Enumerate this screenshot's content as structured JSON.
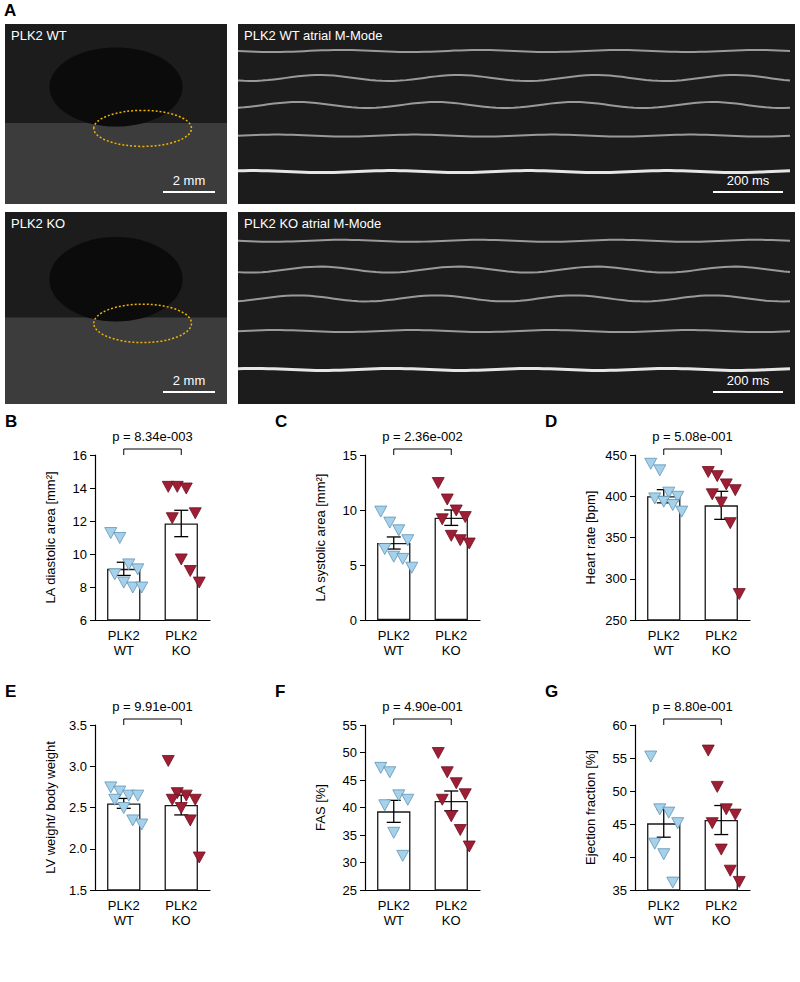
{
  "panel_a": {
    "panel": "A",
    "images": [
      {
        "label": "PLK2 WT",
        "scale_bar": "2 mm"
      },
      {
        "label": "PLK2 WT atrial M-Mode",
        "scale_bar": "200 ms"
      },
      {
        "label": "PLK2 KO",
        "scale_bar": "2 mm"
      },
      {
        "label": "PLK2 KO atrial M-Mode",
        "scale_bar": "200 ms"
      }
    ]
  },
  "chart_data": [
    {
      "panel": "B",
      "type": "bar",
      "ylabel": "LA diastolic area [mm²]",
      "categories": [
        "PLK2\nWT",
        "PLK2\nKO"
      ],
      "values": [
        9.1,
        11.85
      ],
      "errors": [
        0.4,
        0.8
      ],
      "points": [
        [
          11.3,
          11.0,
          9.4,
          9.1,
          8.8,
          8.3,
          8.0,
          8.0
        ],
        [
          14.1,
          14.1,
          14.0,
          12.5,
          12.2,
          9.7,
          9.0,
          8.3
        ]
      ],
      "colors": [
        "#a6d1ea",
        "#9e1f35"
      ],
      "marker": "triangle-down",
      "annotation": "p = 8.34e-003",
      "ylim": [
        6,
        16
      ],
      "yticks": [
        6,
        8,
        10,
        12,
        14,
        16
      ]
    },
    {
      "panel": "C",
      "type": "bar",
      "ylabel": "LA systolic area [mm²]",
      "categories": [
        "PLK2\nWT",
        "PLK2\nKO"
      ],
      "values": [
        7.0,
        9.3
      ],
      "errors": [
        0.55,
        0.7
      ],
      "points": [
        [
          9.9,
          8.9,
          8.2,
          7.3,
          6.5,
          5.8,
          5.6,
          4.8
        ],
        [
          12.5,
          11.0,
          10.0,
          9.4,
          9.2,
          7.7,
          7.3,
          7.0
        ]
      ],
      "colors": [
        "#a6d1ea",
        "#9e1f35"
      ],
      "marker": "triangle-down",
      "annotation": "p = 2.36e-002",
      "ylim": [
        0,
        15
      ],
      "yticks": [
        0,
        5,
        10,
        15
      ]
    },
    {
      "panel": "D",
      "type": "bar",
      "ylabel": "Heart rate [bpm]",
      "categories": [
        "PLK2\nWT",
        "PLK2\nKO"
      ],
      "values": [
        400,
        389
      ],
      "errors": [
        8,
        17
      ],
      "points": [
        [
          440,
          432,
          405,
          400,
          398,
          394,
          390,
          382
        ],
        [
          430,
          425,
          415,
          408,
          403,
          393,
          368,
          282
        ]
      ],
      "colors": [
        "#a6d1ea",
        "#9e1f35"
      ],
      "marker": "triangle-down",
      "annotation": "p = 5.08e-001",
      "ylim": [
        250,
        450
      ],
      "yticks": [
        250,
        300,
        350,
        400,
        450
      ]
    },
    {
      "panel": "E",
      "type": "bar",
      "ylabel": "LV weight/ body weight",
      "categories": [
        "PLK2\nWT",
        "PLK2\nKO"
      ],
      "values": [
        2.55,
        2.53
      ],
      "errors": [
        0.06,
        0.12
      ],
      "points": [
        [
          2.75,
          2.7,
          2.65,
          2.65,
          2.6,
          2.5,
          2.35,
          2.3
        ],
        [
          3.07,
          2.68,
          2.65,
          2.6,
          2.6,
          2.5,
          2.35,
          1.9
        ]
      ],
      "colors": [
        "#a6d1ea",
        "#9e1f35"
      ],
      "marker": "triangle-down",
      "annotation": "p = 9.91e-001",
      "ylim": [
        1.5,
        3.5
      ],
      "yticks": [
        1.5,
        {
          "value": 2,
          "label": "2.0"
        },
        2.5,
        {
          "value": 3,
          "label": "3.0"
        },
        3.5
      ]
    },
    {
      "panel": "F",
      "type": "bar",
      "ylabel": "FAS [%]",
      "categories": [
        "PLK2\nWT",
        "PLK2\nKO"
      ],
      "values": [
        39.3,
        41.2
      ],
      "errors": [
        2.0,
        1.8
      ],
      "points": [
        [
          47.3,
          46.5,
          42.3,
          41.5,
          40.5,
          35.5,
          31.3
        ],
        [
          50.0,
          46.5,
          44.5,
          42.5,
          41.5,
          38.5,
          36.0,
          33.0
        ]
      ],
      "colors": [
        "#a6d1ea",
        "#9e1f35"
      ],
      "marker": "triangle-down",
      "annotation": "p = 4.90e-001",
      "ylim": [
        25,
        55
      ],
      "yticks": [
        25,
        30,
        35,
        40,
        45,
        50,
        55
      ]
    },
    {
      "panel": "G",
      "type": "bar",
      "ylabel": "Ejection fraction [%]",
      "categories": [
        "PLK2\nWT",
        "PLK2\nKO"
      ],
      "values": [
        45.1,
        45.6
      ],
      "errors": [
        2.1,
        2.2
      ],
      "points": [
        [
          55.3,
          47.3,
          46.8,
          45.2,
          42.1,
          40.5,
          36.2
        ],
        [
          56.2,
          50.7,
          47.3,
          46.5,
          45.2,
          41.2,
          38.0,
          36.3
        ]
      ],
      "colors": [
        "#a6d1ea",
        "#9e1f35"
      ],
      "marker": "triangle-down",
      "annotation": "p = 8.80e-001",
      "ylim": [
        35,
        60
      ],
      "yticks": [
        35,
        40,
        45,
        50,
        55,
        60
      ]
    }
  ]
}
